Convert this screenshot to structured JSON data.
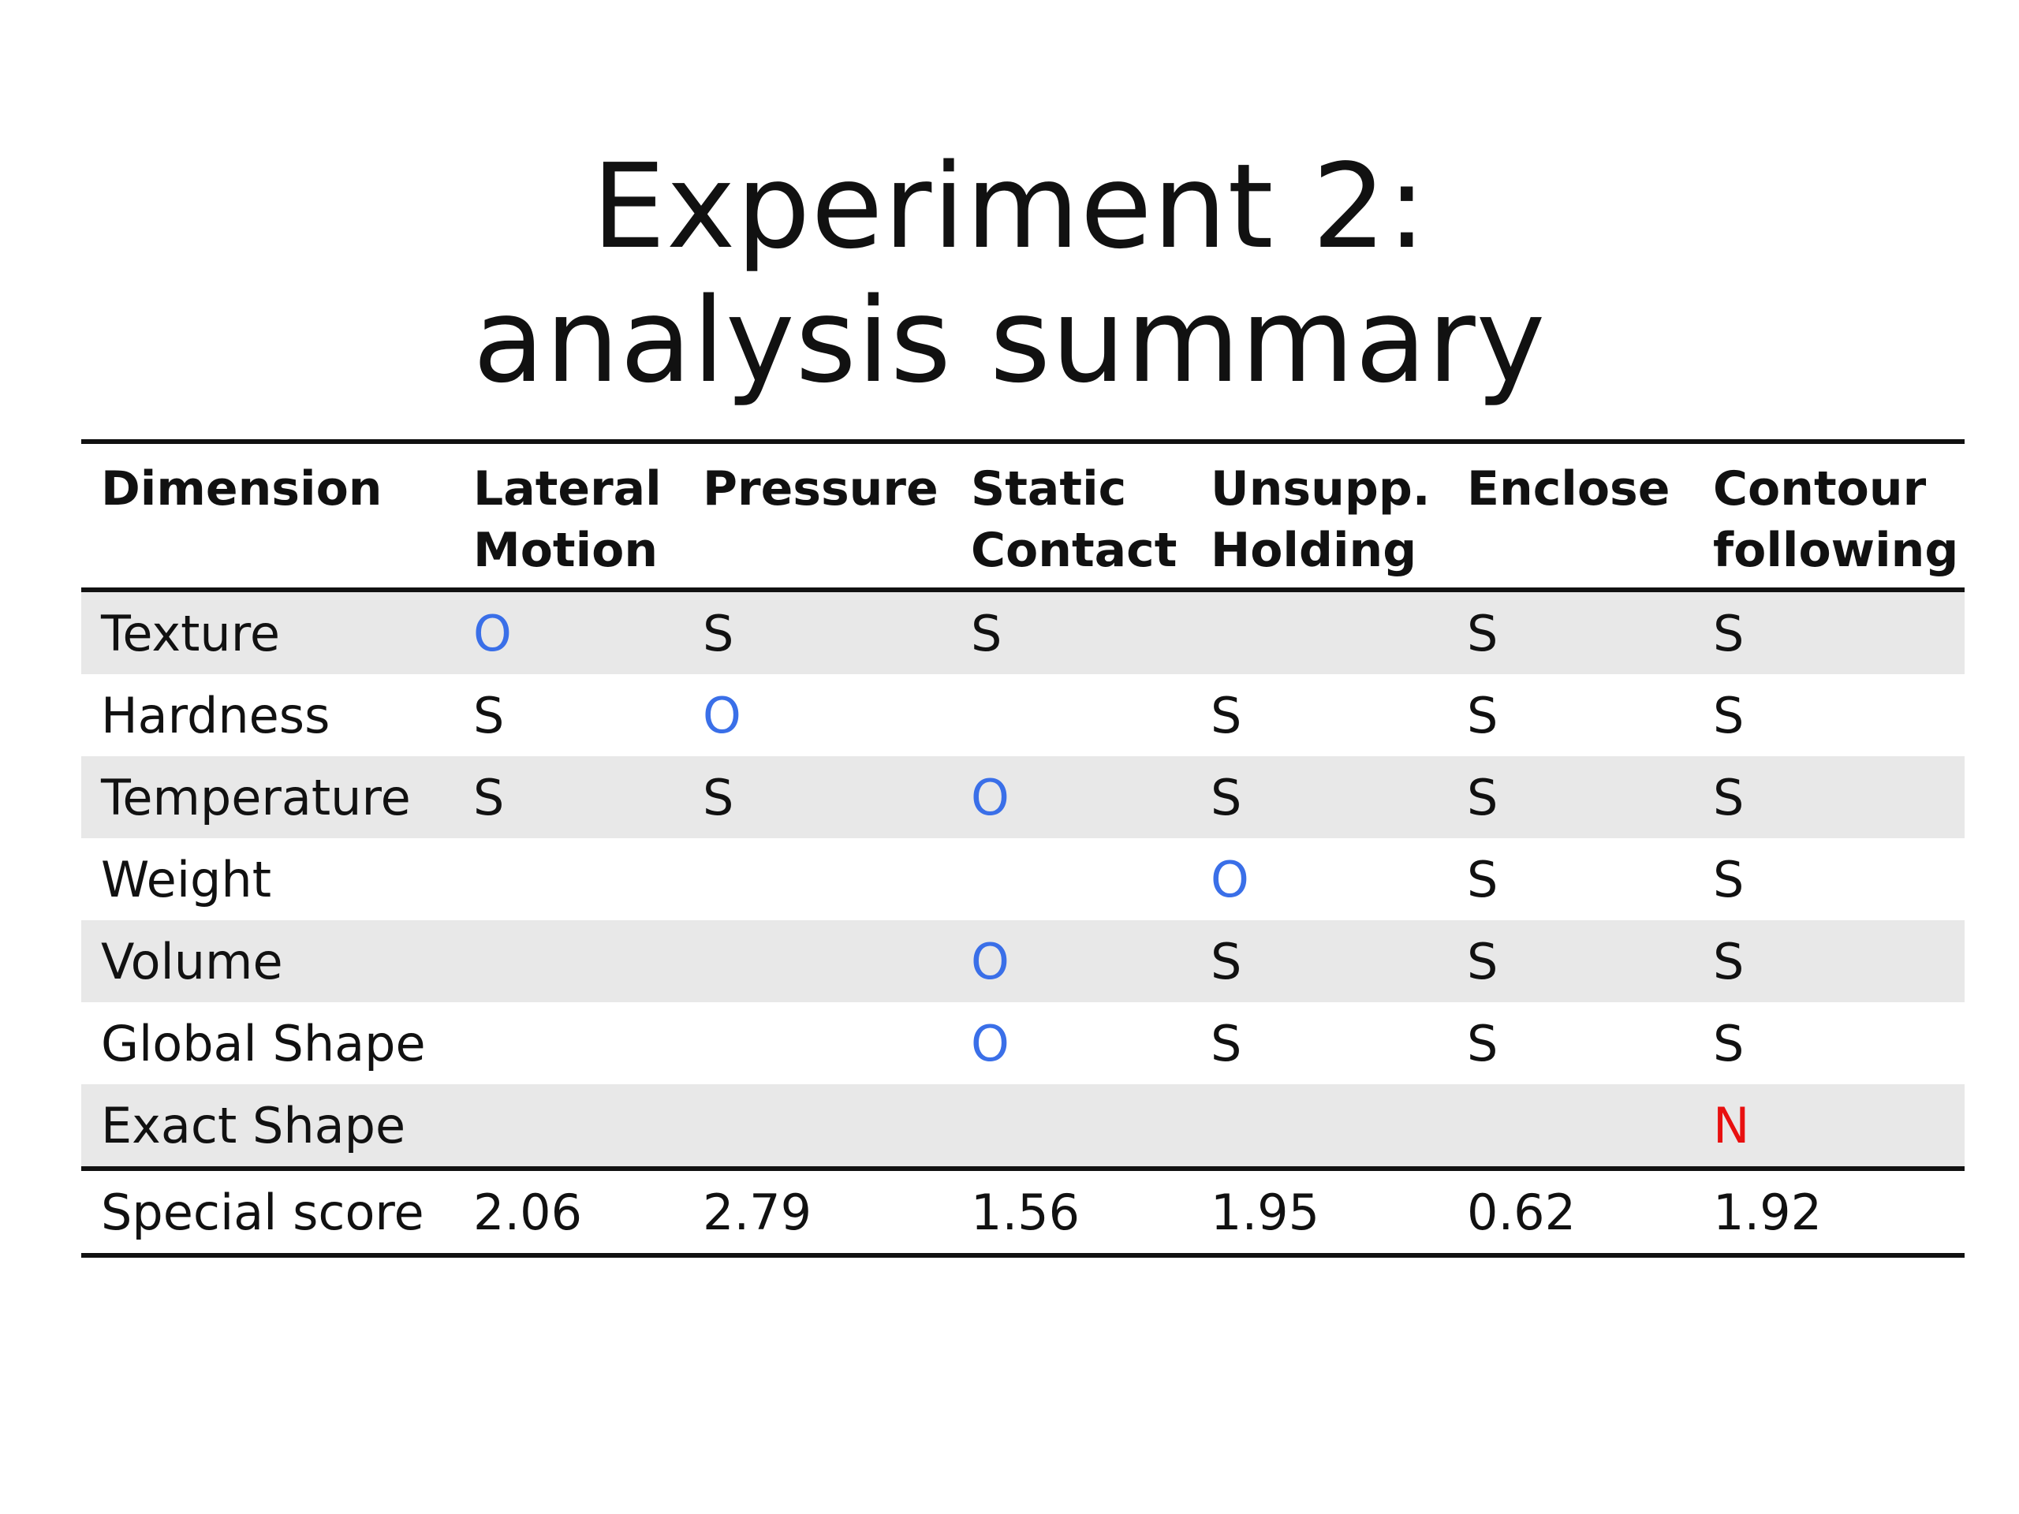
{
  "title": {
    "line1": "Experiment 2:",
    "line2": "analysis summary"
  },
  "colors": {
    "optimal_mark": "#3a6fe8",
    "necessary_mark": "#e81010",
    "sufficient_mark": "#111111",
    "row_shade": "#e8e8e8"
  },
  "table": {
    "headers": [
      [
        "Dimension"
      ],
      [
        "Lateral",
        "Motion"
      ],
      [
        "Pressure"
      ],
      [
        "Static",
        "Contact"
      ],
      [
        "Unsupp.",
        "Holding"
      ],
      [
        "Enclose"
      ],
      [
        "Contour",
        "following"
      ]
    ],
    "rows": [
      {
        "label": "Texture",
        "cells": [
          "O",
          "S",
          "S",
          "",
          "S",
          "S"
        ]
      },
      {
        "label": "Hardness",
        "cells": [
          "S",
          "O",
          "",
          "S",
          "S",
          "S"
        ]
      },
      {
        "label": "Temperature",
        "cells": [
          "S",
          "S",
          "O",
          "S",
          "S",
          "S"
        ]
      },
      {
        "label": "Weight",
        "cells": [
          "",
          "",
          "",
          "O",
          "S",
          "S"
        ]
      },
      {
        "label": "Volume",
        "cells": [
          "",
          "",
          "O",
          "S",
          "S",
          "S"
        ]
      },
      {
        "label": "Global Shape",
        "cells": [
          "",
          "",
          "O",
          "S",
          "S",
          "S"
        ]
      },
      {
        "label": "Exact Shape",
        "cells": [
          "",
          "",
          "",
          "",
          "",
          "N"
        ]
      }
    ],
    "footer": {
      "label": "Special score",
      "values": [
        "2.06",
        "2.79",
        "1.56",
        "1.95",
        "0.62",
        "1.92"
      ]
    }
  }
}
